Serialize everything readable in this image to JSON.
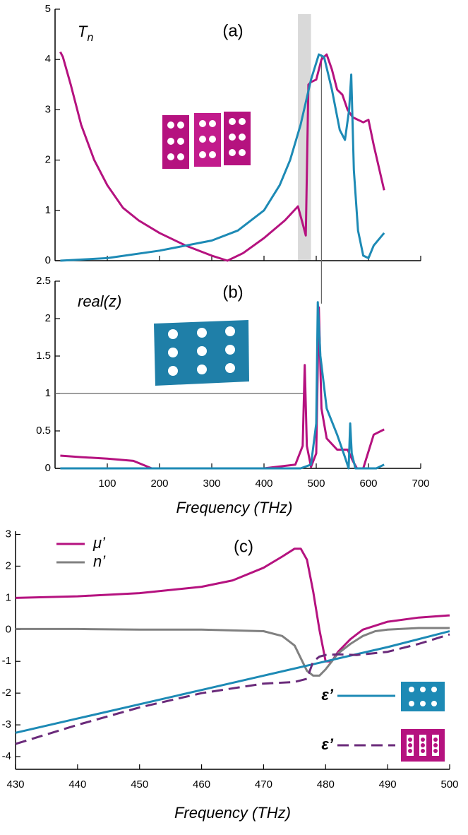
{
  "chart_data": [
    {
      "type": "line",
      "title": "(a)",
      "y_label": {
        "text": "T",
        "subscript": "n"
      },
      "xlim": [
        0,
        700
      ],
      "ylim": [
        0,
        5
      ],
      "xticks": [
        100,
        200,
        300,
        400,
        500,
        600,
        700
      ],
      "yticks": [
        0,
        1,
        2,
        3,
        4,
        5
      ],
      "show_xtick_labels": false,
      "shaded_band": [
        465,
        490
      ],
      "guide_lines": [
        {
          "x": [
            510,
            510
          ],
          "y": [
            4.1,
            0
          ]
        }
      ],
      "series": [
        {
          "color": "#b5127f",
          "x": [
            10,
            15,
            30,
            50,
            75,
            100,
            130,
            160,
            200,
            250,
            300,
            330,
            360,
            400,
            440,
            465,
            475,
            480,
            485,
            490,
            500,
            510,
            520,
            530,
            540,
            550,
            560,
            570,
            580,
            590,
            600,
            610,
            630
          ],
          "values": [
            4.15,
            4.05,
            3.5,
            2.7,
            2.0,
            1.5,
            1.05,
            0.8,
            0.55,
            0.3,
            0.1,
            0.0,
            0.15,
            0.45,
            0.8,
            1.08,
            0.7,
            0.5,
            3.5,
            3.55,
            3.6,
            4.0,
            4.1,
            3.8,
            3.4,
            3.3,
            3.0,
            2.85,
            2.8,
            2.75,
            2.8,
            2.3,
            1.4
          ]
        },
        {
          "color": "#1d8ab5",
          "x": [
            10,
            100,
            200,
            300,
            350,
            400,
            430,
            450,
            470,
            490,
            505,
            515,
            530,
            545,
            555,
            563,
            567,
            572,
            580,
            590,
            600,
            610,
            630
          ],
          "values": [
            0,
            0.05,
            0.2,
            0.4,
            0.6,
            1.0,
            1.5,
            2.0,
            2.7,
            3.6,
            4.1,
            4.05,
            3.4,
            2.6,
            2.4,
            3.0,
            3.7,
            1.8,
            0.6,
            0.1,
            0.05,
            0.3,
            0.55
          ]
        }
      ]
    },
    {
      "type": "line",
      "title": "(b)",
      "y_label": "real(z)",
      "x_label": "Frequency (THz)",
      "xlim": [
        0,
        700
      ],
      "ylim": [
        0,
        2.5
      ],
      "xticks": [
        100,
        200,
        300,
        400,
        500,
        600,
        700
      ],
      "yticks": [
        0,
        0.5,
        1,
        1.5,
        2,
        2.5
      ],
      "show_xtick_labels": true,
      "guide_lines": [
        {
          "x": [
            0,
            480
          ],
          "y": [
            1,
            1
          ]
        },
        {
          "x": [
            510,
            510
          ],
          "y": [
            2.5,
            2.2
          ]
        }
      ],
      "series": [
        {
          "color": "#b5127f",
          "x": [
            10,
            50,
            100,
            150,
            185,
            300,
            400,
            460,
            474,
            478,
            482,
            490,
            500,
            505,
            510,
            520,
            540,
            560,
            570,
            578,
            590,
            610,
            630
          ],
          "values": [
            0.17,
            0.15,
            0.13,
            0.1,
            0.0,
            0,
            0.0,
            0.05,
            0.3,
            1.38,
            0.3,
            0.02,
            0.2,
            2.15,
            0.8,
            0.4,
            0.25,
            0.25,
            0.1,
            0.0,
            0.0,
            0.45,
            0.52
          ]
        },
        {
          "color": "#1d8ab5",
          "x": [
            10,
            300,
            470,
            490,
            500,
            503,
            508,
            520,
            540,
            555,
            562,
            565,
            568,
            575,
            600,
            615,
            630
          ],
          "values": [
            0,
            0,
            0,
            0.05,
            0.6,
            2.22,
            1.5,
            0.8,
            0.45,
            0.15,
            0.0,
            0.6,
            0.2,
            0.0,
            0.0,
            0.0,
            0.05
          ]
        }
      ]
    },
    {
      "type": "line",
      "title": "(c)",
      "x_label": "Frequency (THz)",
      "xlim": [
        430,
        500
      ],
      "ylim": [
        -4.4,
        3.1
      ],
      "xticks": [
        430,
        440,
        450,
        460,
        470,
        480,
        490,
        500
      ],
      "yticks": [
        -4,
        -3,
        -2,
        -1,
        0,
        1,
        2,
        3
      ],
      "show_xtick_labels": true,
      "series": [
        {
          "name": "μ’",
          "color": "#b5127f",
          "dashed": false,
          "x": [
            430,
            440,
            450,
            460,
            465,
            470,
            473,
            475,
            476,
            477,
            478,
            479,
            480,
            481,
            482,
            484,
            486,
            490,
            495,
            500
          ],
          "values": [
            1.0,
            1.05,
            1.15,
            1.35,
            1.55,
            1.95,
            2.3,
            2.55,
            2.55,
            2.2,
            1.2,
            0.0,
            -1.0,
            -1.0,
            -0.7,
            -0.3,
            0.0,
            0.25,
            0.38,
            0.45
          ]
        },
        {
          "name": "n’",
          "color": "#808080",
          "dashed": false,
          "x": [
            430,
            440,
            450,
            460,
            470,
            473,
            475,
            476,
            477,
            478,
            479,
            480,
            481,
            482,
            484,
            486,
            488,
            490,
            495,
            500
          ],
          "values": [
            0.02,
            0.02,
            0.0,
            0.0,
            -0.05,
            -0.2,
            -0.5,
            -0.9,
            -1.3,
            -1.45,
            -1.45,
            -1.25,
            -1.0,
            -0.75,
            -0.45,
            -0.2,
            -0.05,
            0.0,
            0.05,
            0.05
          ]
        },
        {
          "name": "ε’",
          "color": "#1d8ab5",
          "dashed": false,
          "x": [
            430,
            440,
            450,
            460,
            470,
            480,
            490,
            500
          ],
          "values": [
            -3.25,
            -2.8,
            -2.35,
            -1.9,
            -1.45,
            -1.0,
            -0.55,
            -0.05
          ]
        },
        {
          "name": "ε’",
          "color": "#6a2a7a",
          "dashed": true,
          "x": [
            430,
            440,
            450,
            460,
            470,
            475,
            477,
            478,
            479,
            480,
            482,
            485,
            490,
            495,
            500
          ],
          "values": [
            -3.6,
            -3.0,
            -2.45,
            -2.0,
            -1.7,
            -1.65,
            -1.55,
            -1.0,
            -0.85,
            -0.8,
            -0.78,
            -0.8,
            -0.7,
            -0.45,
            -0.15
          ]
        }
      ]
    }
  ]
}
